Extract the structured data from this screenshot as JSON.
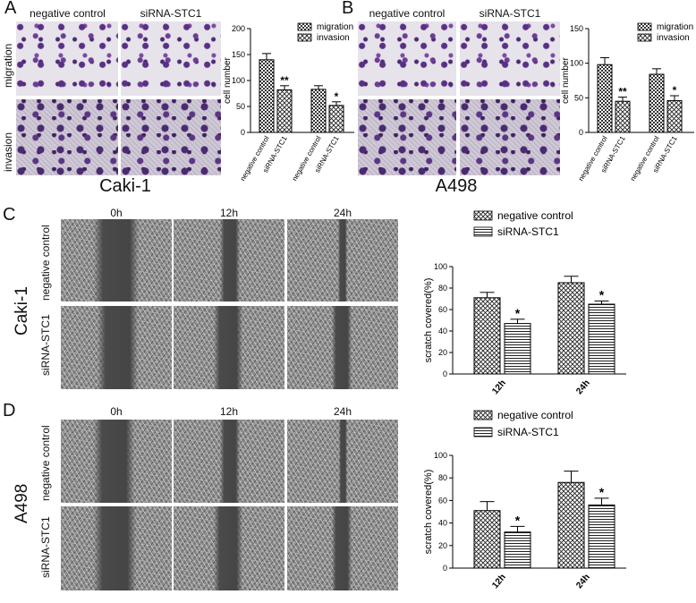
{
  "panels": {
    "A": {
      "label": "A",
      "col_headers": [
        "negative control",
        "siRNA-STC1"
      ],
      "row_labels": [
        "migration",
        "invasion"
      ],
      "cell_line": "Caki-1"
    },
    "B": {
      "label": "B",
      "col_headers": [
        "negative control",
        "siRNA-STC1"
      ],
      "cell_line": "A498"
    },
    "C": {
      "label": "C",
      "time_headers": [
        "0h",
        "12h",
        "24h"
      ],
      "row_labels": [
        "negative control",
        "siRNA-STC1"
      ],
      "cell_line": "Caki-1"
    },
    "D": {
      "label": "D",
      "time_headers": [
        "0h",
        "12h",
        "24h"
      ],
      "row_labels": [
        "negative control",
        "siRNA-STC1"
      ],
      "cell_line": "A498"
    }
  },
  "chart_data": [
    {
      "panel": "A",
      "type": "bar",
      "ylabel": "cell number",
      "ylim": [
        0,
        200
      ],
      "yticks": [
        0,
        50,
        100,
        150,
        200
      ],
      "categories": [
        "negative control",
        "siRNA-STC1",
        "negative control",
        "siRNA-STC1"
      ],
      "series": [
        {
          "name": "migration",
          "values": [
            140,
            82,
            null,
            null
          ],
          "errors": [
            12,
            8,
            null,
            null
          ]
        },
        {
          "name": "invasion",
          "values": [
            null,
            null,
            83,
            52
          ],
          "errors": [
            null,
            null,
            7,
            7
          ]
        }
      ],
      "significance": [
        "",
        "**",
        "",
        "*"
      ],
      "legend": "top-right"
    },
    {
      "panel": "B",
      "type": "bar",
      "ylabel": "cell number",
      "ylim": [
        0,
        150
      ],
      "yticks": [
        0,
        50,
        100,
        150
      ],
      "categories": [
        "negative control",
        "siRNA-STC1",
        "negative control",
        "siRNA-STC1"
      ],
      "series": [
        {
          "name": "migration",
          "values": [
            98,
            45,
            null,
            null
          ],
          "errors": [
            10,
            6,
            null,
            null
          ]
        },
        {
          "name": "invasion",
          "values": [
            null,
            null,
            84,
            46
          ],
          "errors": [
            null,
            null,
            8,
            7
          ]
        }
      ],
      "significance": [
        "",
        "**",
        "",
        "*"
      ],
      "legend": "top-right"
    },
    {
      "panel": "C",
      "type": "bar",
      "ylabel": "scratch covered(%)",
      "ylim": [
        0,
        100
      ],
      "yticks": [
        0,
        20,
        40,
        60,
        80,
        100
      ],
      "categories": [
        "12h",
        "24h"
      ],
      "series": [
        {
          "name": "negative control",
          "values": [
            71,
            85
          ],
          "errors": [
            5,
            6
          ]
        },
        {
          "name": "siRNA-STC1",
          "values": [
            47,
            65
          ],
          "errors": [
            4,
            3
          ]
        }
      ],
      "significance": [
        "*",
        "*"
      ],
      "legend": "top"
    },
    {
      "panel": "D",
      "type": "bar",
      "ylabel": "scratch covered(%)",
      "ylim": [
        0,
        100
      ],
      "yticks": [
        0,
        20,
        40,
        60,
        80,
        100
      ],
      "categories": [
        "12h",
        "24h"
      ],
      "series": [
        {
          "name": "negative control",
          "values": [
            51,
            76
          ],
          "errors": [
            8,
            10
          ]
        },
        {
          "name": "siRNA-STC1",
          "values": [
            32,
            56
          ],
          "errors": [
            5,
            6
          ]
        }
      ],
      "significance": [
        "*",
        "*"
      ],
      "legend": "top"
    }
  ]
}
